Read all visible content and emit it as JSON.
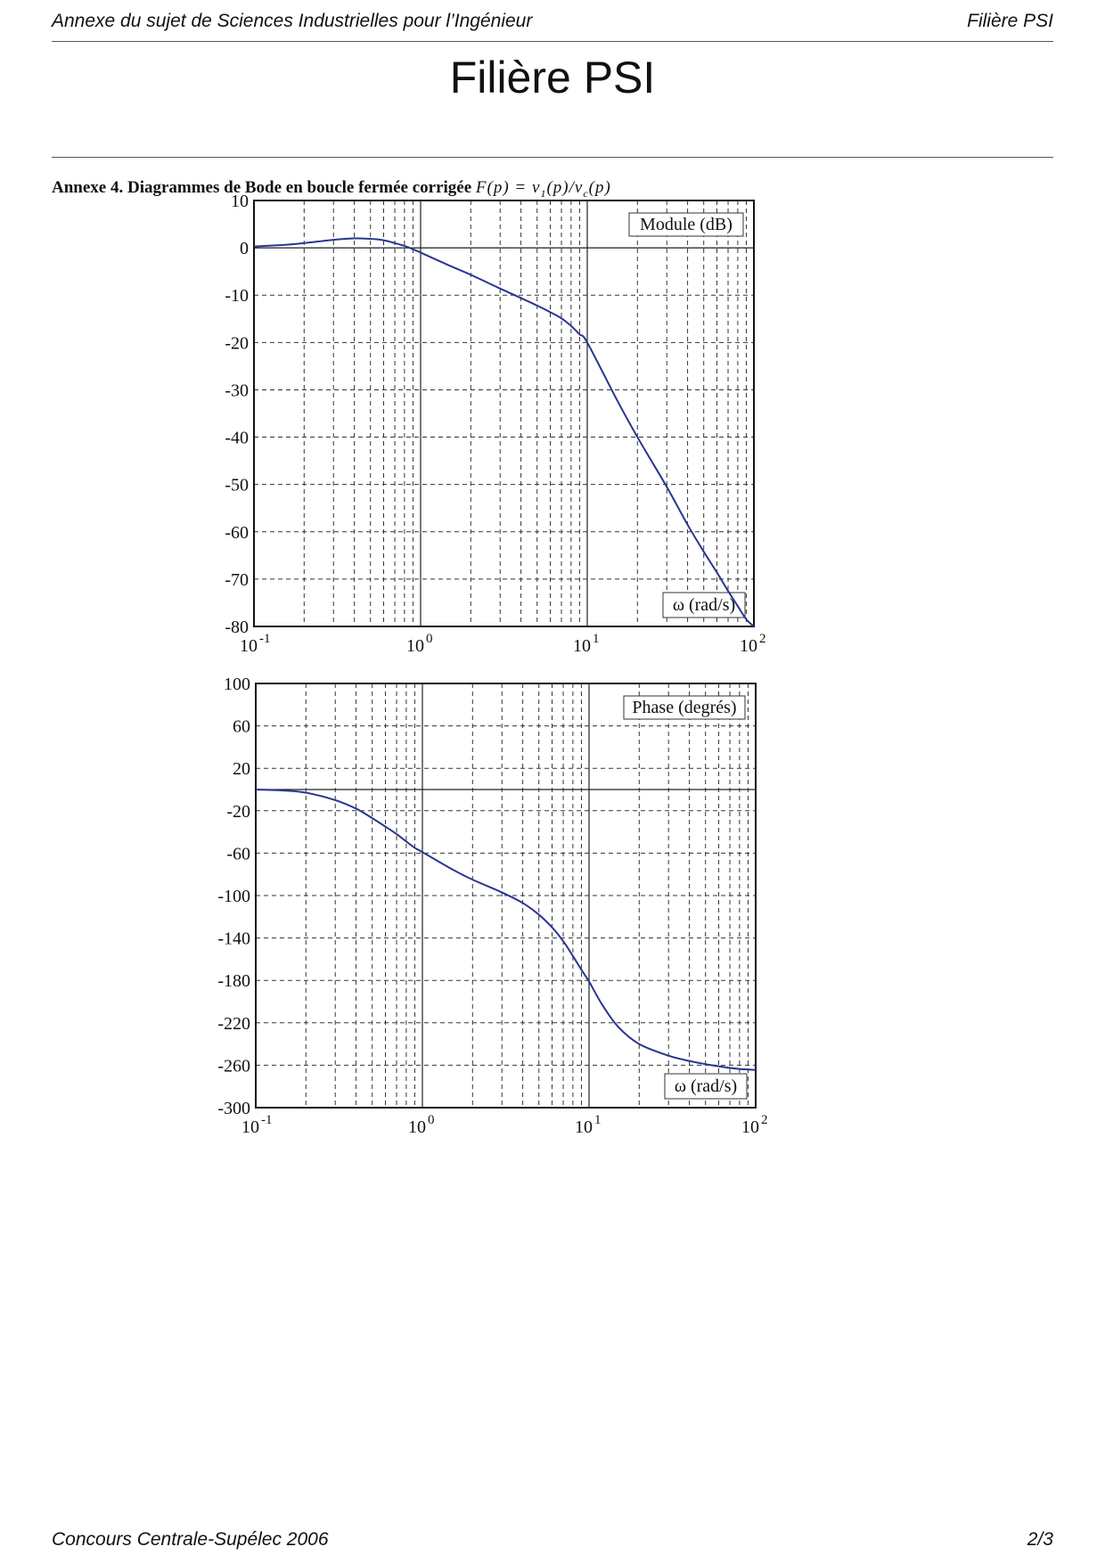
{
  "header": {
    "left": "Annexe du sujet de Sciences Industrielles pour l’Ingénieur",
    "right": "Filière PSI"
  },
  "title": "Filière PSI",
  "annex": {
    "label": "Annexe 4. Diagrammes de Bode en boucle fermée corrigée",
    "formula": "F(p) = ν1(p)/νc(p)"
  },
  "footer": {
    "left": "Concours Centrale-Supélec 2006",
    "right": "2/3"
  },
  "chart_data": [
    {
      "type": "line",
      "title": "",
      "legend_label": "Module (dB)",
      "xlabel": "ω (rad/s)",
      "ylabel": "",
      "x_scale": "log",
      "xlim": [
        0.1,
        100
      ],
      "ylim": [
        -80,
        10
      ],
      "y_ticks": [
        10,
        0,
        -10,
        -20,
        -30,
        -40,
        -50,
        -60,
        -70,
        -80
      ],
      "x_ticks": [
        "10^-1",
        "10^0",
        "10^1",
        "10^2"
      ],
      "grid": true,
      "label_positions": {
        "legend": "top-right",
        "xlabel": "bottom-right"
      },
      "series": [
        {
          "color": "#2a3590",
          "x": [
            0.1,
            0.15,
            0.2,
            0.3,
            0.4,
            0.5,
            0.6,
            0.7,
            0.8,
            0.9,
            1,
            1.5,
            2,
            3,
            4,
            5,
            6,
            7,
            8,
            9,
            10,
            15,
            20,
            30,
            40,
            50,
            60,
            70,
            80,
            90,
            100
          ],
          "y": [
            0.3,
            0.6,
            1.0,
            1.7,
            2.0,
            1.9,
            1.6,
            1.0,
            0.4,
            -0.3,
            -1.0,
            -3.8,
            -5.7,
            -8.6,
            -10.6,
            -12.2,
            -13.6,
            -14.9,
            -16.5,
            -18.3,
            -20,
            -32,
            -40,
            -50.5,
            -58.5,
            -64.2,
            -68.6,
            -72.5,
            -75.7,
            -78.5,
            -80.6
          ]
        }
      ]
    },
    {
      "type": "line",
      "title": "",
      "legend_label": "Phase (degrés)",
      "xlabel": "ω (rad/s)",
      "ylabel": "",
      "x_scale": "log",
      "xlim": [
        0.1,
        100
      ],
      "ylim": [
        -300,
        100
      ],
      "y_ticks": [
        100,
        60,
        20,
        -20,
        -60,
        -100,
        -140,
        -180,
        -220,
        -260,
        -300
      ],
      "x_ticks": [
        "10^-1",
        "10^0",
        "10^1",
        "10^2"
      ],
      "grid": true,
      "label_positions": {
        "legend": "top-right",
        "xlabel": "bottom-right"
      },
      "series": [
        {
          "color": "#2a3590",
          "x": [
            0.1,
            0.15,
            0.2,
            0.3,
            0.4,
            0.5,
            0.6,
            0.7,
            0.8,
            0.9,
            1,
            1.5,
            2,
            3,
            4,
            5,
            6,
            7,
            8,
            9,
            10,
            12,
            15,
            20,
            30,
            40,
            50,
            60,
            70,
            80,
            90,
            100
          ],
          "y": [
            0,
            -1,
            -3,
            -10,
            -18,
            -27,
            -35,
            -42,
            -49,
            -55,
            -59,
            -75,
            -85,
            -97,
            -107,
            -118,
            -130,
            -143,
            -157,
            -170,
            -181,
            -203,
            -224,
            -240,
            -251,
            -256,
            -259,
            -261,
            -262.5,
            -263.5,
            -264,
            -264.5
          ]
        }
      ]
    }
  ]
}
